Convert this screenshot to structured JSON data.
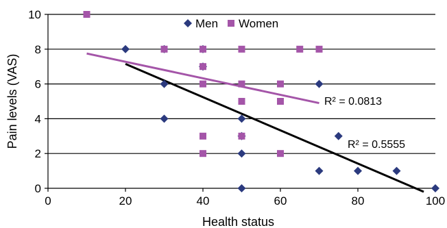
{
  "chart_data": {
    "type": "scatter",
    "title": "",
    "xlabel": "Health status",
    "ylabel": "Pain levels (VAS)",
    "xlim": [
      0,
      100
    ],
    "ylim": [
      0,
      10
    ],
    "x_ticks": [
      0,
      20,
      40,
      60,
      80,
      100
    ],
    "y_ticks": [
      0,
      2,
      4,
      6,
      8,
      10
    ],
    "grid": "horizontal",
    "legend_position": "top",
    "series": [
      {
        "name": "Men",
        "marker": "diamond",
        "color": "#2b3a7e",
        "points": [
          {
            "x": 20,
            "y": 8
          },
          {
            "x": 30,
            "y": 8
          },
          {
            "x": 30,
            "y": 6
          },
          {
            "x": 30,
            "y": 4
          },
          {
            "x": 40,
            "y": 8
          },
          {
            "x": 40,
            "y": 7
          },
          {
            "x": 50,
            "y": 4
          },
          {
            "x": 50,
            "y": 3
          },
          {
            "x": 50,
            "y": 2
          },
          {
            "x": 50,
            "y": 0
          },
          {
            "x": 70,
            "y": 6
          },
          {
            "x": 70,
            "y": 1
          },
          {
            "x": 75,
            "y": 3
          },
          {
            "x": 80,
            "y": 1
          },
          {
            "x": 90,
            "y": 1
          },
          {
            "x": 100,
            "y": 0
          }
        ],
        "trendline": {
          "x": [
            20,
            97
          ],
          "y": [
            7.15,
            -0.2
          ],
          "color": "#000000"
        },
        "r_squared": "R² = 0.5555"
      },
      {
        "name": "Women",
        "marker": "square",
        "color": "#a455a8",
        "points": [
          {
            "x": 10,
            "y": 10
          },
          {
            "x": 30,
            "y": 8
          },
          {
            "x": 40,
            "y": 8
          },
          {
            "x": 40,
            "y": 7
          },
          {
            "x": 40,
            "y": 6
          },
          {
            "x": 40,
            "y": 3
          },
          {
            "x": 40,
            "y": 2
          },
          {
            "x": 50,
            "y": 8
          },
          {
            "x": 50,
            "y": 6
          },
          {
            "x": 50,
            "y": 5
          },
          {
            "x": 50,
            "y": 3
          },
          {
            "x": 60,
            "y": 6
          },
          {
            "x": 60,
            "y": 5
          },
          {
            "x": 60,
            "y": 2
          },
          {
            "x": 65,
            "y": 8
          },
          {
            "x": 70,
            "y": 8
          }
        ],
        "trendline": {
          "x": [
            10,
            70
          ],
          "y": [
            7.75,
            4.9
          ],
          "color": "#a455a8"
        },
        "r_squared": "R² = 0.0813"
      }
    ]
  }
}
